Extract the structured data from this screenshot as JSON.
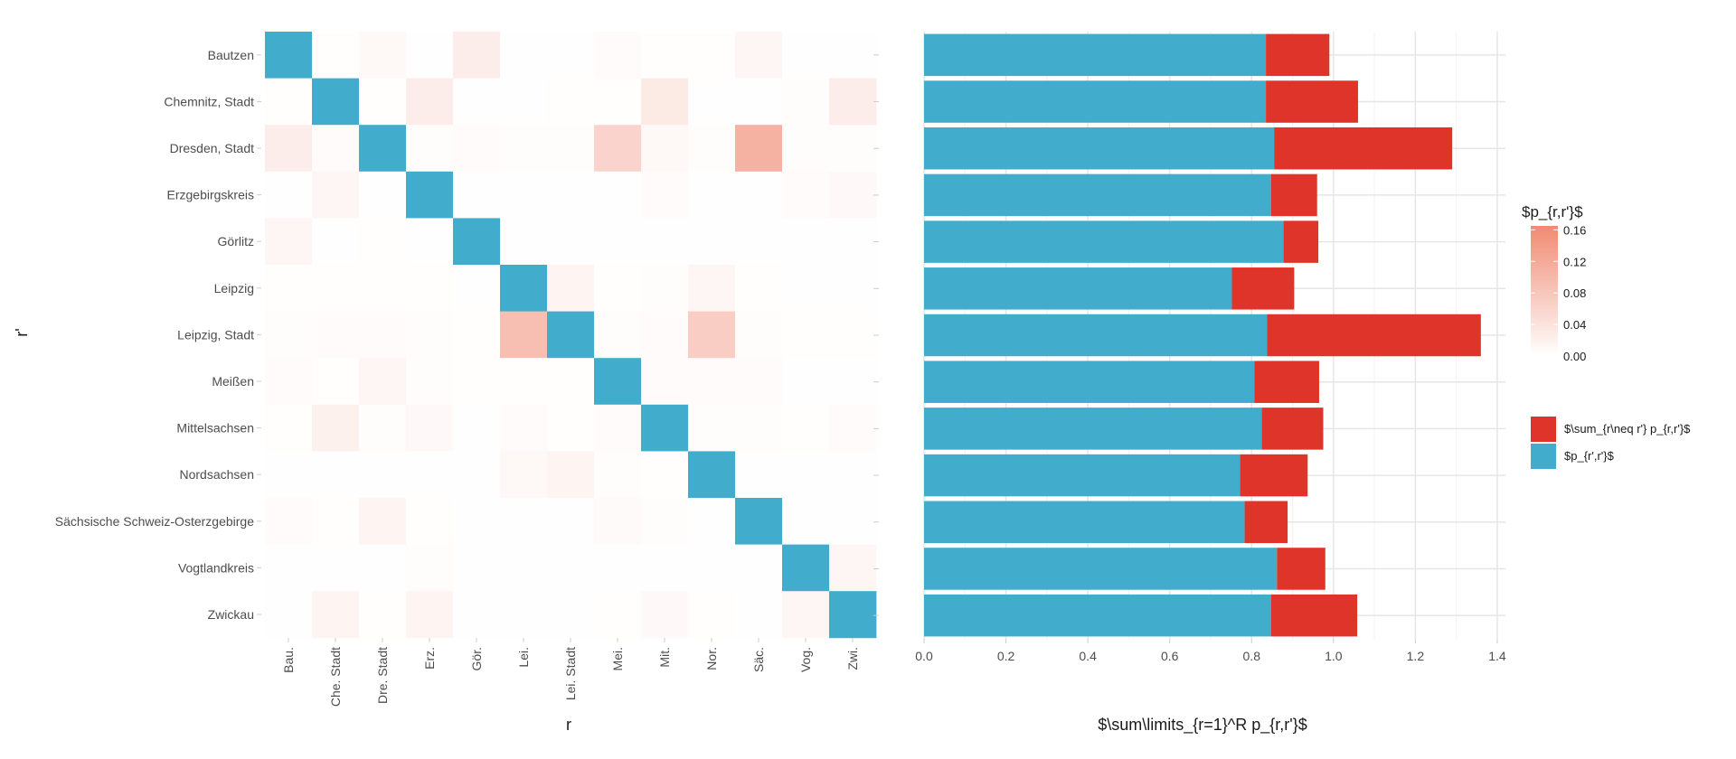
{
  "chart_data": [
    {
      "type": "heatmap",
      "xlabel": "r",
      "ylabel": "r'",
      "row_labels": [
        "Bautzen",
        "Chemnitz, Stadt",
        "Dresden, Stadt",
        "Erzgebirgskreis",
        "Görlitz",
        "Leipzig",
        "Leipzig, Stadt",
        "Meißen",
        "Mittelsachsen",
        "Nordsachsen",
        "Sächsische Schweiz-Osterzgebirge",
        "Vogtlandkreis",
        "Zwickau"
      ],
      "col_labels": [
        "Bau.",
        "Che. Stadt",
        "Dre. Stadt",
        "Erz.",
        "Gör.",
        "Lei.",
        "Lei. Stadt",
        "Mei.",
        "Mit.",
        "Nor.",
        "Säc.",
        "Vog.",
        "Zwi."
      ],
      "diagonal_color": "#42ACCC",
      "values": [
        [
          null,
          0.002,
          0.01,
          0.001,
          0.025,
          0.001,
          0.001,
          0.006,
          0.002,
          0.002,
          0.012,
          0.001,
          0.001
        ],
        [
          0.002,
          null,
          0.002,
          0.025,
          0.001,
          0.001,
          0.002,
          0.002,
          0.03,
          0.001,
          0.001,
          0.004,
          0.025
        ],
        [
          0.025,
          0.005,
          null,
          0.003,
          0.006,
          0.004,
          0.004,
          0.06,
          0.01,
          0.003,
          0.11,
          0.004,
          0.004
        ],
        [
          0.001,
          0.012,
          0.001,
          null,
          0.001,
          0.001,
          0.001,
          0.001,
          0.005,
          0.001,
          0.001,
          0.005,
          0.008
        ],
        [
          0.012,
          0.001,
          0.002,
          0.001,
          null,
          0.001,
          0.001,
          0.001,
          0.001,
          0.001,
          0.001,
          0.001,
          0.001
        ],
        [
          0.002,
          0.002,
          0.002,
          0.002,
          0.001,
          null,
          0.015,
          0.002,
          0.004,
          0.012,
          0.002,
          0.001,
          0.001
        ],
        [
          0.004,
          0.005,
          0.006,
          0.004,
          0.002,
          0.09,
          null,
          0.004,
          0.006,
          0.07,
          0.004,
          0.002,
          0.002
        ],
        [
          0.006,
          0.002,
          0.012,
          0.004,
          0.002,
          0.002,
          0.002,
          null,
          0.005,
          0.006,
          0.006,
          0.001,
          0.001
        ],
        [
          0.002,
          0.02,
          0.003,
          0.008,
          0.001,
          0.006,
          0.002,
          0.006,
          null,
          0.004,
          0.004,
          0.002,
          0.005
        ],
        [
          0.001,
          0.001,
          0.001,
          0.001,
          0.001,
          0.01,
          0.015,
          0.004,
          0.002,
          null,
          0.001,
          0.001,
          0.001
        ],
        [
          0.006,
          0.002,
          0.015,
          0.002,
          0.001,
          0.001,
          0.001,
          0.007,
          0.004,
          0.001,
          null,
          0.001,
          0.001
        ],
        [
          0.001,
          0.001,
          0.001,
          0.004,
          0.001,
          0.001,
          0.001,
          0.001,
          0.001,
          0.001,
          0.001,
          null,
          0.012
        ],
        [
          0.001,
          0.015,
          0.002,
          0.015,
          0.001,
          0.001,
          0.001,
          0.002,
          0.008,
          0.002,
          0.001,
          0.012,
          null
        ]
      ],
      "colorbar": {
        "title": "$p_{r,r'}$",
        "min": 0,
        "max": 0.165,
        "ticks": [
          "0.00",
          "0.04",
          "0.08",
          "0.12",
          "0.16"
        ],
        "tick_values": [
          0,
          0.04,
          0.08,
          0.12,
          0.16
        ],
        "low_color": "#FFFFFF",
        "high_color": "#F08A72"
      }
    },
    {
      "type": "bar",
      "orientation": "horizontal",
      "stacked": true,
      "xlabel": "$\\sum\\limits_{r=1}^R p_{r,r'}$",
      "categories": [
        "Bautzen",
        "Chemnitz, Stadt",
        "Dresden, Stadt",
        "Erzgebirgskreis",
        "Görlitz",
        "Leipzig",
        "Leipzig, Stadt",
        "Meißen",
        "Mittelsachsen",
        "Nordsachsen",
        "Sächsische Schweiz-Osterzgebirge",
        "Vogtlandkreis",
        "Zwickau"
      ],
      "series": [
        {
          "name": "$p_{r',r'}$",
          "color": "#42ACCC",
          "values": [
            0.835,
            0.835,
            0.855,
            0.848,
            0.878,
            0.752,
            0.838,
            0.807,
            0.825,
            0.772,
            0.783,
            0.862,
            0.848
          ]
        },
        {
          "name": "$\\sum_{r\\neq r'} p_{r,r'}$",
          "color": "#DF3429",
          "values": [
            0.155,
            0.225,
            0.435,
            0.112,
            0.085,
            0.152,
            0.522,
            0.158,
            0.15,
            0.165,
            0.105,
            0.118,
            0.21
          ]
        }
      ],
      "xlim": [
        0,
        1.42
      ],
      "xticks": [
        0.0,
        0.2,
        0.4,
        0.6,
        0.8,
        1.0,
        1.2,
        1.4
      ],
      "xtick_labels": [
        "0.0",
        "0.2",
        "0.4",
        "0.6",
        "0.8",
        "1.0",
        "1.2",
        "1.4"
      ],
      "legend": {
        "position": "right",
        "entries": [
          {
            "label": "$\\sum_{r\\neq r'} p_{r,r'}$",
            "color": "#DF3429"
          },
          {
            "label": "$p_{r',r'}$",
            "color": "#42ACCC"
          }
        ]
      }
    }
  ]
}
